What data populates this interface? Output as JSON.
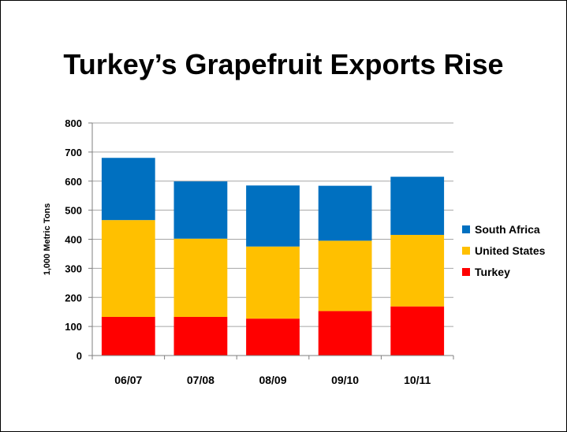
{
  "slide": {
    "title": "Turkey’s Grapefruit Exports Rise"
  },
  "chart_data": {
    "type": "bar",
    "stacked": true,
    "title": "Turkey’s Grapefruit Exports Rise",
    "ylabel": "1,000 Metric Tons",
    "xlabel": "",
    "ylim": [
      0,
      800
    ],
    "yticks": [
      0,
      100,
      200,
      300,
      400,
      500,
      600,
      700,
      800
    ],
    "grid": true,
    "legend_position": "right",
    "categories": [
      "06/07",
      "07/08",
      "08/09",
      "09/10",
      "10/11"
    ],
    "series": [
      {
        "name": "Turkey",
        "color": "#ff0000",
        "values": [
          133,
          133,
          127,
          153,
          169
        ]
      },
      {
        "name": "United States",
        "color": "#ffc000",
        "values": [
          333,
          269,
          248,
          242,
          246
        ]
      },
      {
        "name": "South Africa",
        "color": "#0070c0",
        "values": [
          214,
          197,
          210,
          189,
          200
        ]
      }
    ],
    "legend_order": [
      "South Africa",
      "United States",
      "Turkey"
    ]
  }
}
